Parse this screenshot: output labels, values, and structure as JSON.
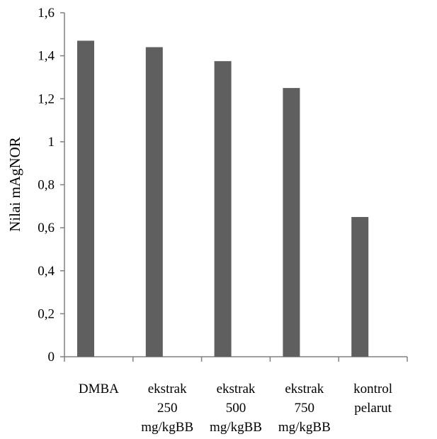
{
  "chart_data": {
    "type": "bar",
    "title": "",
    "xlabel": "",
    "ylabel": "Nilai mAgNOR",
    "ylim": [
      0,
      1.6
    ],
    "yticks": [
      "0",
      "0,2",
      "0,4",
      "0,6",
      "0,8",
      "1",
      "1,2",
      "1,4",
      "1,6"
    ],
    "ytick_values": [
      0,
      0.2,
      0.4,
      0.6,
      0.8,
      1.0,
      1.2,
      1.4,
      1.6
    ],
    "categories": [
      [
        "DMBA"
      ],
      [
        "ekstrak",
        "250",
        "mg/kgBB"
      ],
      [
        "ekstrak",
        "500",
        "mg/kgBB"
      ],
      [
        "ekstrak",
        "750",
        "mg/kgBB"
      ],
      [
        "kontrol",
        "pelarut"
      ]
    ],
    "values": [
      1.47,
      1.44,
      1.375,
      1.25,
      0.65
    ],
    "bar_color": "#5f5f5f",
    "axis_color": "#808080",
    "grid": false,
    "legend": "none"
  }
}
